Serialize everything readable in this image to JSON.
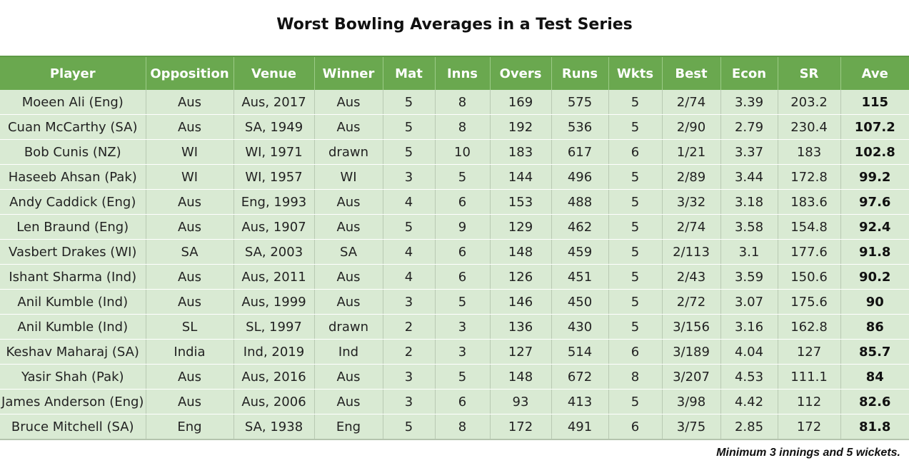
{
  "title": "Worst Bowling Averages in a Test Series",
  "columns": [
    "Player",
    "Opposition",
    "Venue",
    "Winner",
    "Mat",
    "Inns",
    "Overs",
    "Runs",
    "Wkts",
    "Best",
    "Econ",
    "SR",
    "Ave"
  ],
  "rows": [
    [
      "Moeen Ali (Eng)",
      "Aus",
      "Aus, 2017",
      "Aus",
      "5",
      "8",
      "169",
      "575",
      "5",
      "2/74",
      "3.39",
      "203.2",
      "115"
    ],
    [
      "Cuan McCarthy (SA)",
      "Aus",
      "SA, 1949",
      "Aus",
      "5",
      "8",
      "192",
      "536",
      "5",
      "2/90",
      "2.79",
      "230.4",
      "107.2"
    ],
    [
      "Bob Cunis (NZ)",
      "WI",
      "WI, 1971",
      "drawn",
      "5",
      "10",
      "183",
      "617",
      "6",
      "1/21",
      "3.37",
      "183",
      "102.8"
    ],
    [
      "Haseeb Ahsan (Pak)",
      "WI",
      "WI, 1957",
      "WI",
      "3",
      "5",
      "144",
      "496",
      "5",
      "2/89",
      "3.44",
      "172.8",
      "99.2"
    ],
    [
      "Andy Caddick (Eng)",
      "Aus",
      "Eng, 1993",
      "Aus",
      "4",
      "6",
      "153",
      "488",
      "5",
      "3/32",
      "3.18",
      "183.6",
      "97.6"
    ],
    [
      "Len Braund (Eng)",
      "Aus",
      "Aus, 1907",
      "Aus",
      "5",
      "9",
      "129",
      "462",
      "5",
      "2/74",
      "3.58",
      "154.8",
      "92.4"
    ],
    [
      "Vasbert Drakes (WI)",
      "SA",
      "SA, 2003",
      "SA",
      "4",
      "6",
      "148",
      "459",
      "5",
      "2/113",
      "3.1",
      "177.6",
      "91.8"
    ],
    [
      "Ishant Sharma (Ind)",
      "Aus",
      "Aus, 2011",
      "Aus",
      "4",
      "6",
      "126",
      "451",
      "5",
      "2/43",
      "3.59",
      "150.6",
      "90.2"
    ],
    [
      "Anil Kumble (Ind)",
      "Aus",
      "Aus, 1999",
      "Aus",
      "3",
      "5",
      "146",
      "450",
      "5",
      "2/72",
      "3.07",
      "175.6",
      "90"
    ],
    [
      "Anil Kumble (Ind)",
      "SL",
      "SL, 1997",
      "drawn",
      "2",
      "3",
      "136",
      "430",
      "5",
      "3/156",
      "3.16",
      "162.8",
      "86"
    ],
    [
      "Keshav Maharaj (SA)",
      "India",
      "Ind, 2019",
      "Ind",
      "2",
      "3",
      "127",
      "514",
      "6",
      "3/189",
      "4.04",
      "127",
      "85.7"
    ],
    [
      "Yasir Shah (Pak)",
      "Aus",
      "Aus, 2016",
      "Aus",
      "3",
      "5",
      "148",
      "672",
      "8",
      "3/207",
      "4.53",
      "111.1",
      "84"
    ],
    [
      "James Anderson (Eng)",
      "Aus",
      "Aus, 2006",
      "Aus",
      "3",
      "6",
      "93",
      "413",
      "5",
      "3/98",
      "4.42",
      "112",
      "82.6"
    ],
    [
      "Bruce Mitchell (SA)",
      "Eng",
      "SA, 1938",
      "Eng",
      "5",
      "8",
      "172",
      "491",
      "6",
      "3/75",
      "2.85",
      "172",
      "81.8"
    ]
  ],
  "footnote": "Minimum 3 innings and 5 wickets.",
  "colors": {
    "header_bg": "#6aa84f",
    "header_text": "#ffffff",
    "row_bg": "#d9ead3"
  }
}
